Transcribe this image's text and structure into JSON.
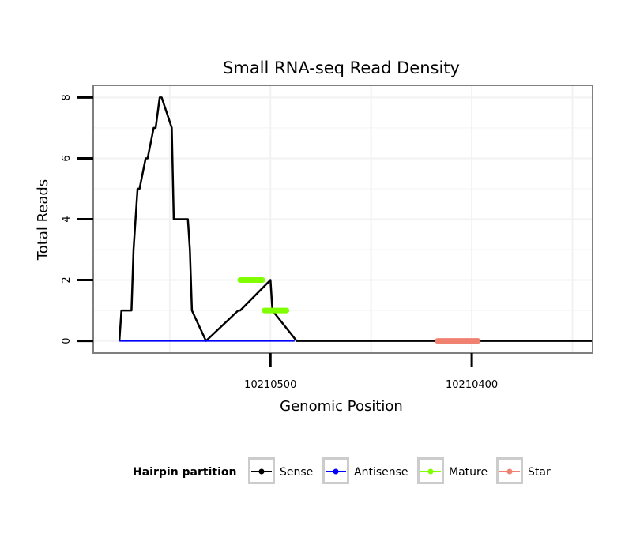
{
  "chart_data": {
    "type": "line",
    "title": "Small RNA-seq Read Density",
    "xlabel": "Genomic Position",
    "ylabel": "Total Reads",
    "x_reversed": true,
    "xlim": [
      10210588,
      10210340
    ],
    "ylim": [
      -0.4,
      8.4
    ],
    "x_ticks": [
      10210500,
      10210400
    ],
    "x_tick_labels": [
      "10210500",
      "10210400"
    ],
    "y_ticks": [
      0,
      2,
      4,
      6,
      8
    ],
    "y_tick_labels": [
      "0",
      "2",
      "4",
      "6",
      "8"
    ],
    "grid": true,
    "legend": {
      "title": "Hairpin partition",
      "position": "bottom",
      "entries": [
        "Sense",
        "Antisense",
        "Mature",
        "Star"
      ]
    },
    "series": [
      {
        "name": "Sense",
        "color": "#000000",
        "width": 2.5,
        "x": [
          10210575,
          10210574,
          10210569,
          10210568,
          10210566,
          10210565,
          10210562,
          10210561,
          10210558,
          10210557,
          10210555,
          10210554,
          10210549,
          10210548,
          10210547,
          10210541,
          10210540,
          10210539,
          10210539,
          10210532,
          10210516,
          10210515,
          10210500,
          10210499,
          10210487,
          10210340
        ],
        "y": [
          0,
          1,
          1,
          3,
          5,
          5,
          6,
          6,
          7,
          7,
          8,
          8,
          7,
          4,
          4,
          4,
          3,
          1,
          1,
          0,
          1,
          1,
          2,
          1,
          0,
          0
        ]
      },
      {
        "name": "Antisense",
        "color": "#0000ff",
        "width": 2,
        "x": [
          10210575,
          10210488
        ],
        "y": [
          0,
          0
        ]
      },
      {
        "name": "Mature",
        "color": "#7fff00",
        "width": 7,
        "segments": [
          {
            "x": [
              10210515,
              10210504
            ],
            "y": [
              2,
              2
            ]
          },
          {
            "x": [
              10210503,
              10210492
            ],
            "y": [
              1,
              1
            ]
          }
        ]
      },
      {
        "name": "Star",
        "color": "#f08070",
        "width": 7,
        "segments": [
          {
            "x": [
              10210417,
              10210397
            ],
            "y": [
              0,
              0
            ]
          }
        ]
      }
    ]
  }
}
